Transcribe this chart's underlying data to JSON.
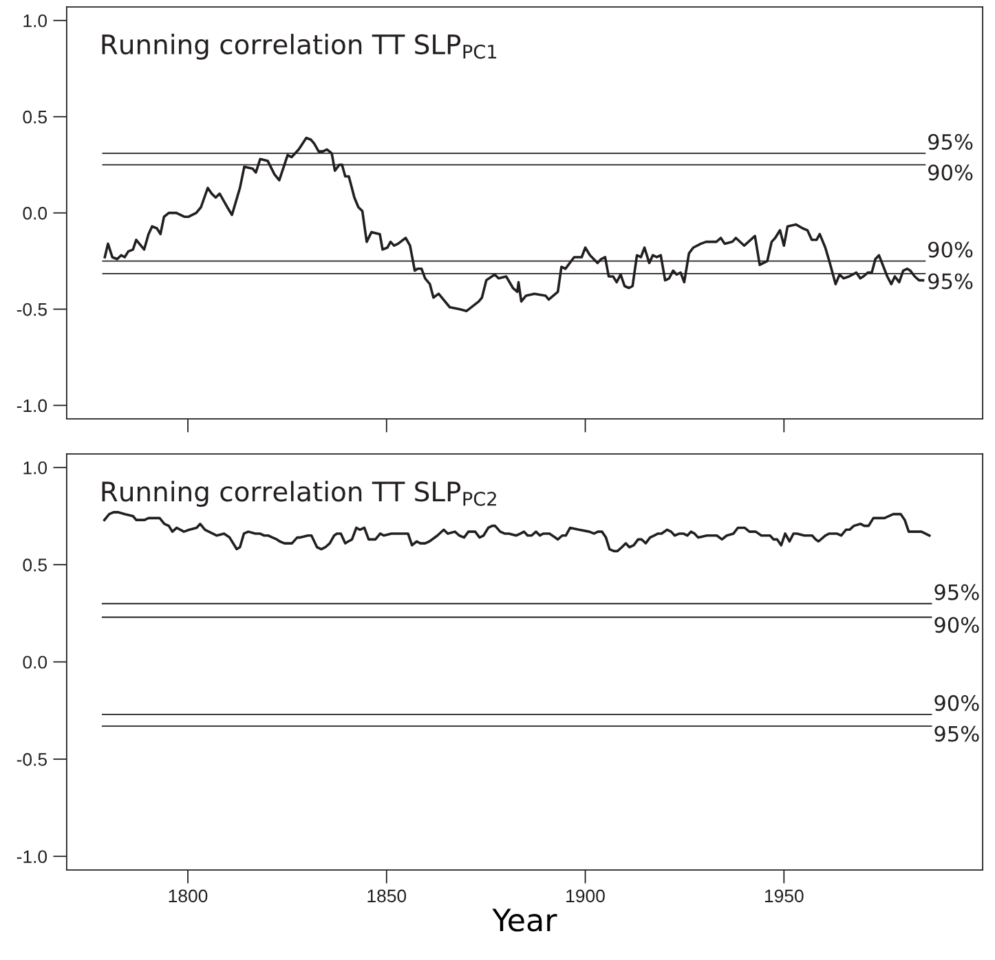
{
  "chart_data": [
    {
      "type": "line",
      "title": "Running correlation TT SLP$_{PC1}$",
      "tick_labels": "y",
      "xlim": [
        1769.5,
        2000
      ],
      "ylim": [
        -1.07,
        1.07
      ],
      "xticks": [
        1800,
        1850,
        1900,
        1950
      ],
      "yticks": [
        {
          "value": 1.0,
          "label": "1.0"
        },
        {
          "value": 0.5,
          "label": "0.5"
        },
        {
          "value": 0.0,
          "label": "0.0"
        },
        {
          "value": -0.5,
          "label": "-0.5"
        },
        {
          "value": -1.0,
          "label": "-1.0"
        }
      ],
      "grid": false,
      "legend": false,
      "series": [
        {
          "color": "#231f20",
          "x": [
            1779.1,
            1779.9,
            1781.0,
            1782.2,
            1783.2,
            1784.1,
            1785.0,
            1786.2,
            1787.0,
            1789.0,
            1790.1,
            1791.0,
            1792.2,
            1793.1,
            1794.0,
            1795.2,
            1797.1,
            1799.1,
            1800.2,
            1802.1,
            1803.3,
            1805.0,
            1806.0,
            1807.0,
            1808.0,
            1810.2,
            1811.1,
            1813.1,
            1814.2,
            1816.3,
            1817.1,
            1818.2,
            1820.1,
            1821.8,
            1823.0,
            1825.1,
            1826.1,
            1827.9,
            1829.8,
            1831.0,
            1831.8,
            1832.9,
            1834.0,
            1835.0,
            1836.2,
            1837.0,
            1838.1,
            1838.8,
            1839.6,
            1840.5,
            1841.9,
            1842.9,
            1843.9,
            1845.0,
            1846.2,
            1848.3,
            1849.0,
            1850.2,
            1851.0,
            1851.9,
            1852.9,
            1854.8,
            1855.9,
            1857.1,
            1857.8,
            1858.8,
            1859.7,
            1860.9,
            1861.8,
            1863.1,
            1865.9,
            1868.3,
            1870.1,
            1873.2,
            1874.0,
            1875.1,
            1877.2,
            1878.2,
            1880.1,
            1881.8,
            1882.9,
            1883.2,
            1883.9,
            1885.1,
            1887.2,
            1890.0,
            1890.8,
            1893.1,
            1894.0,
            1895.0,
            1897.2,
            1899.1,
            1900.0,
            1901.2,
            1903.1,
            1904.0,
            1905.0,
            1905.9,
            1907.0,
            1907.9,
            1908.9,
            1909.9,
            1911.0,
            1911.9,
            1913.0,
            1914.0,
            1914.9,
            1916.1,
            1917.0,
            1918.0,
            1919.0,
            1920.1,
            1921.1,
            1922.1,
            1923.0,
            1924.0,
            1924.9,
            1926.1,
            1927.2,
            1929.1,
            1930.4,
            1933.0,
            1934.1,
            1935.1,
            1937.0,
            1937.9,
            1940.0,
            1942.7,
            1943.9,
            1945.8,
            1946.9,
            1947.8,
            1949.0,
            1950.0,
            1950.9,
            1953.0,
            1954.7,
            1955.9,
            1957.0,
            1958.2,
            1959.0,
            1960.4,
            1961.4,
            1963.0,
            1964.0,
            1965.0,
            1966.4,
            1968.2,
            1969.2,
            1970.0,
            1971.1,
            1972.1,
            1973.0,
            1973.9,
            1976.0,
            1977.0,
            1977.9,
            1979.0,
            1980.0,
            1981.0,
            1981.8,
            1982.9,
            1984.0,
            1985.0
          ],
          "values": [
            -0.23,
            -0.16,
            -0.23,
            -0.24,
            -0.22,
            -0.23,
            -0.2,
            -0.19,
            -0.14,
            -0.19,
            -0.11,
            -0.07,
            -0.08,
            -0.11,
            -0.02,
            0.0,
            0.0,
            -0.02,
            -0.02,
            0.0,
            0.03,
            0.13,
            0.1,
            0.08,
            0.1,
            0.02,
            -0.01,
            0.13,
            0.24,
            0.23,
            0.21,
            0.28,
            0.27,
            0.2,
            0.17,
            0.3,
            0.29,
            0.33,
            0.39,
            0.38,
            0.36,
            0.32,
            0.32,
            0.33,
            0.31,
            0.22,
            0.25,
            0.25,
            0.19,
            0.19,
            0.08,
            0.03,
            0.01,
            -0.15,
            -0.1,
            -0.11,
            -0.19,
            -0.18,
            -0.15,
            -0.17,
            -0.16,
            -0.13,
            -0.17,
            -0.3,
            -0.29,
            -0.29,
            -0.34,
            -0.37,
            -0.44,
            -0.42,
            -0.49,
            -0.5,
            -0.51,
            -0.46,
            -0.44,
            -0.35,
            -0.32,
            -0.34,
            -0.33,
            -0.39,
            -0.41,
            -0.36,
            -0.46,
            -0.43,
            -0.42,
            -0.43,
            -0.45,
            -0.41,
            -0.28,
            -0.29,
            -0.23,
            -0.23,
            -0.18,
            -0.22,
            -0.26,
            -0.24,
            -0.23,
            -0.33,
            -0.33,
            -0.36,
            -0.32,
            -0.38,
            -0.39,
            -0.38,
            -0.22,
            -0.23,
            -0.18,
            -0.26,
            -0.22,
            -0.23,
            -0.22,
            -0.35,
            -0.34,
            -0.3,
            -0.32,
            -0.31,
            -0.36,
            -0.21,
            -0.18,
            -0.16,
            -0.15,
            -0.15,
            -0.13,
            -0.16,
            -0.15,
            -0.13,
            -0.17,
            -0.12,
            -0.27,
            -0.25,
            -0.15,
            -0.13,
            -0.09,
            -0.17,
            -0.07,
            -0.06,
            -0.08,
            -0.09,
            -0.14,
            -0.14,
            -0.11,
            -0.18,
            -0.25,
            -0.37,
            -0.32,
            -0.34,
            -0.33,
            -0.31,
            -0.34,
            -0.33,
            -0.31,
            -0.31,
            -0.24,
            -0.22,
            -0.33,
            -0.37,
            -0.33,
            -0.36,
            -0.3,
            -0.29,
            -0.3,
            -0.33,
            -0.35,
            -0.35
          ]
        }
      ],
      "ref_lines": [
        {
          "axis": "y",
          "value": 0.31,
          "color": "#231f20"
        },
        {
          "axis": "y",
          "value": 0.25,
          "color": "#231f20"
        },
        {
          "axis": "y",
          "value": -0.25,
          "color": "#231f20"
        },
        {
          "axis": "y",
          "value": -0.315,
          "color": "#231f20"
        }
      ],
      "annotations": [
        "95%",
        "90%",
        "90%",
        "95%"
      ]
    },
    {
      "type": "line",
      "title": "Running correlation TT SLP$_{PC2}$",
      "xlabel": "Year",
      "xlim": [
        1769.5,
        2000
      ],
      "ylim": [
        -1.07,
        1.07
      ],
      "xticks": [
        1800,
        1850,
        1900,
        1950
      ],
      "yticks": [
        {
          "value": 1.0,
          "label": "1.0"
        },
        {
          "value": 0.5,
          "label": "0.5"
        },
        {
          "value": 0.0,
          "label": "0.0"
        },
        {
          "value": -0.5,
          "label": "-0.5"
        },
        {
          "value": -1.0,
          "label": "-1.0"
        }
      ],
      "grid": false,
      "legend": false,
      "series": [
        {
          "color": "#231f20",
          "x": [
            1779.0,
            1780.2,
            1781.3,
            1782.4,
            1784.2,
            1786.2,
            1787.0,
            1788.2,
            1789.1,
            1790.1,
            1792.9,
            1794.1,
            1795.2,
            1796.1,
            1797.2,
            1799.0,
            1800.4,
            1802.2,
            1803.1,
            1804.3,
            1807.3,
            1809.1,
            1810.5,
            1812.3,
            1813.1,
            1814.1,
            1815.2,
            1817.0,
            1818.1,
            1819.2,
            1820.2,
            1821.3,
            1822.4,
            1823.1,
            1824.3,
            1825.3,
            1826.2,
            1827.5,
            1828.3,
            1830.2,
            1831.1,
            1832.5,
            1833.6,
            1834.6,
            1835.7,
            1836.8,
            1837.5,
            1838.5,
            1839.6,
            1840.4,
            1841.3,
            1842.4,
            1843.3,
            1844.4,
            1845.5,
            1847.2,
            1848.4,
            1849.3,
            1851.2,
            1852.3,
            1853.8,
            1855.4,
            1856.4,
            1857.6,
            1858.5,
            1859.7,
            1860.8,
            1862.8,
            1864.4,
            1865.4,
            1867.2,
            1868.3,
            1869.5,
            1870.6,
            1872.3,
            1873.4,
            1874.4,
            1875.6,
            1876.6,
            1877.3,
            1878.6,
            1879.7,
            1880.8,
            1882.6,
            1883.7,
            1884.6,
            1885.5,
            1886.5,
            1887.6,
            1888.6,
            1889.4,
            1891.0,
            1892.4,
            1893.1,
            1894.2,
            1895.1,
            1896.2,
            1898.4,
            1901.0,
            1902.2,
            1903.2,
            1904.2,
            1905.2,
            1906.1,
            1907.2,
            1908.1,
            1909.2,
            1910.2,
            1911.1,
            1912.2,
            1913.3,
            1914.2,
            1915.2,
            1916.3,
            1917.3,
            1918.3,
            1919.2,
            1920.6,
            1921.6,
            1922.5,
            1923.7,
            1924.7,
            1925.7,
            1926.6,
            1927.5,
            1928.4,
            1930.6,
            1933.1,
            1934.4,
            1935.6,
            1937.3,
            1938.4,
            1940.1,
            1941.3,
            1942.9,
            1944.3,
            1945.6,
            1946.5,
            1947.4,
            1948.3,
            1949.3,
            1950.3,
            1951.4,
            1952.4,
            1953.3,
            1955.1,
            1956.1,
            1957.1,
            1958.0,
            1958.7,
            1960.4,
            1961.4,
            1963.3,
            1964.4,
            1965.6,
            1966.5,
            1967.6,
            1969.3,
            1970.2,
            1971.3,
            1972.5,
            1975.3,
            1977.5,
            1978.5,
            1979.4,
            1980.4,
            1981.4,
            1982.5,
            1983.6,
            1984.6,
            1986.6
          ],
          "values": [
            0.73,
            0.76,
            0.77,
            0.77,
            0.76,
            0.75,
            0.73,
            0.73,
            0.73,
            0.74,
            0.74,
            0.71,
            0.7,
            0.67,
            0.69,
            0.67,
            0.68,
            0.69,
            0.71,
            0.68,
            0.65,
            0.66,
            0.64,
            0.58,
            0.59,
            0.66,
            0.67,
            0.66,
            0.66,
            0.65,
            0.65,
            0.64,
            0.63,
            0.62,
            0.61,
            0.61,
            0.61,
            0.64,
            0.64,
            0.65,
            0.65,
            0.59,
            0.58,
            0.59,
            0.61,
            0.65,
            0.66,
            0.66,
            0.61,
            0.62,
            0.63,
            0.69,
            0.68,
            0.69,
            0.63,
            0.63,
            0.66,
            0.65,
            0.66,
            0.66,
            0.66,
            0.66,
            0.6,
            0.62,
            0.61,
            0.61,
            0.62,
            0.65,
            0.68,
            0.66,
            0.67,
            0.65,
            0.64,
            0.67,
            0.67,
            0.64,
            0.65,
            0.69,
            0.7,
            0.7,
            0.67,
            0.66,
            0.66,
            0.65,
            0.66,
            0.67,
            0.65,
            0.65,
            0.67,
            0.65,
            0.66,
            0.66,
            0.64,
            0.63,
            0.65,
            0.65,
            0.69,
            0.68,
            0.67,
            0.66,
            0.67,
            0.67,
            0.64,
            0.58,
            0.57,
            0.57,
            0.59,
            0.61,
            0.59,
            0.6,
            0.63,
            0.63,
            0.61,
            0.64,
            0.65,
            0.66,
            0.66,
            0.68,
            0.67,
            0.65,
            0.66,
            0.66,
            0.65,
            0.67,
            0.66,
            0.64,
            0.65,
            0.65,
            0.63,
            0.65,
            0.66,
            0.69,
            0.69,
            0.67,
            0.67,
            0.65,
            0.65,
            0.65,
            0.63,
            0.63,
            0.6,
            0.66,
            0.62,
            0.66,
            0.66,
            0.65,
            0.65,
            0.65,
            0.63,
            0.62,
            0.65,
            0.66,
            0.66,
            0.65,
            0.68,
            0.68,
            0.7,
            0.71,
            0.7,
            0.7,
            0.74,
            0.74,
            0.76,
            0.76,
            0.76,
            0.73,
            0.67,
            0.67,
            0.67,
            0.67,
            0.65
          ]
        }
      ],
      "ref_lines": [
        {
          "axis": "y",
          "value": 0.3,
          "color": "#231f20"
        },
        {
          "axis": "y",
          "value": 0.23,
          "color": "#231f20"
        },
        {
          "axis": "y",
          "value": -0.27,
          "color": "#231f20"
        },
        {
          "axis": "y",
          "value": -0.33,
          "color": "#231f20"
        }
      ],
      "annotations": [
        "95%",
        "90%",
        "90%",
        "95%"
      ]
    }
  ]
}
